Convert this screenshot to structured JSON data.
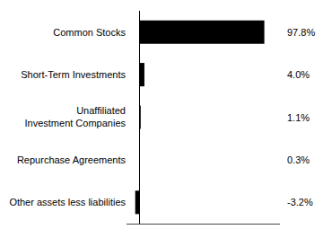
{
  "chart_data": {
    "type": "bar",
    "orientation": "horizontal",
    "categories": [
      "Common Stocks",
      "Short-Term Investments",
      "Unaffiliated\nInvestment Companies",
      "Repurchase Agreements",
      "Other assets less liabilities"
    ],
    "values": [
      97.8,
      4.0,
      1.1,
      0.3,
      -3.2
    ],
    "value_labels": [
      "97.8%",
      "4.0%",
      "1.1%",
      "0.3%",
      "-3.2%"
    ],
    "color": "#000000",
    "data_labels": true,
    "tick_labels": "y",
    "grid": false,
    "xlim": [
      -10,
      110
    ]
  }
}
